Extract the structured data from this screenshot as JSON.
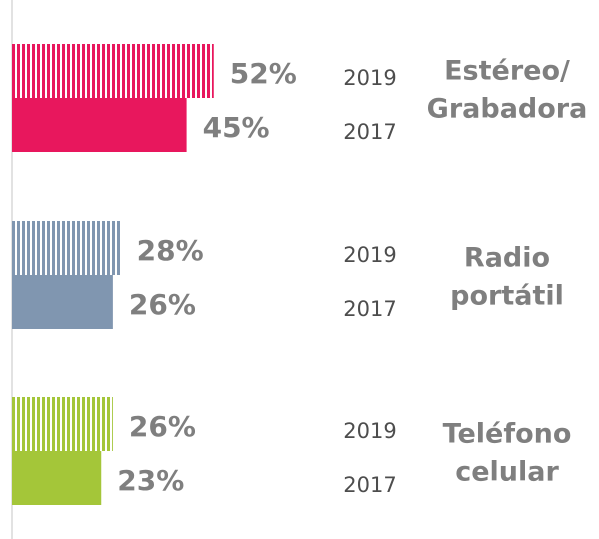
{
  "chart_data": {
    "type": "hbar",
    "categories": [
      [
        "Estéreo/",
        "Grabadora"
      ],
      [
        "Radio",
        "portátil"
      ],
      [
        "Teléfono",
        "celular"
      ]
    ],
    "colors": [
      "#e8175d",
      "#8096b0",
      "#a4c639"
    ],
    "series": [
      {
        "name": "2019",
        "style": "striped",
        "values": [
          52,
          28,
          26
        ],
        "value_labels": [
          "52%",
          "28%",
          "26%"
        ]
      },
      {
        "name": "2017",
        "style": "solid",
        "values": [
          45,
          26,
          23
        ],
        "value_labels": [
          "45%",
          "26%",
          "23%"
        ]
      }
    ],
    "xlim": [
      0,
      100
    ]
  }
}
